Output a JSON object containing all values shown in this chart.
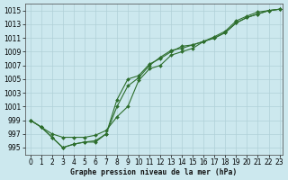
{
  "title": "Graphe pression niveau de la mer (hPa)",
  "background_color": "#cce8ee",
  "grid_color": "#b0d0d8",
  "line_color": "#2d6e2d",
  "xlim": [
    -0.5,
    23.3
  ],
  "ylim": [
    994.0,
    1016.0
  ],
  "yticks": [
    995,
    997,
    999,
    1001,
    1003,
    1005,
    1007,
    1009,
    1011,
    1013,
    1015
  ],
  "xticks": [
    0,
    1,
    2,
    3,
    4,
    5,
    6,
    7,
    8,
    9,
    10,
    11,
    12,
    13,
    14,
    15,
    16,
    17,
    18,
    19,
    20,
    21,
    22,
    23
  ],
  "series1_x": [
    0,
    1,
    2,
    3,
    4,
    5,
    6,
    7,
    8,
    9,
    10,
    11,
    12,
    13,
    14,
    15,
    16,
    17,
    18,
    19,
    20,
    21,
    22,
    23
  ],
  "series1_y": [
    999.0,
    998.0,
    997.0,
    996.5,
    996.5,
    996.5,
    996.8,
    997.5,
    999.5,
    1001.0,
    1004.8,
    1006.5,
    1007.0,
    1008.5,
    1009.0,
    1009.5,
    1010.5,
    1011.0,
    1011.8,
    1013.2,
    1014.0,
    1014.5,
    1015.0,
    1015.2
  ],
  "series2_x": [
    0,
    1,
    2,
    3,
    4,
    5,
    6,
    7,
    8,
    9,
    10,
    11,
    12,
    13,
    14,
    15,
    16,
    17,
    18,
    19,
    20,
    21,
    22,
    23
  ],
  "series2_y": [
    999.0,
    998.0,
    996.5,
    995.0,
    995.5,
    995.8,
    995.8,
    997.0,
    1002.0,
    1005.0,
    1005.5,
    1007.2,
    1008.0,
    1009.0,
    1009.8,
    1010.0,
    1010.5,
    1011.2,
    1012.0,
    1013.5,
    1014.2,
    1014.8,
    1015.0,
    1015.2
  ],
  "series3_x": [
    0,
    1,
    2,
    3,
    4,
    5,
    6,
    7,
    8,
    9,
    10,
    11,
    12,
    13,
    14,
    15,
    16,
    17,
    18,
    19,
    20,
    21,
    22,
    23
  ],
  "series3_y": [
    999.0,
    998.0,
    996.5,
    995.0,
    995.5,
    995.8,
    996.0,
    997.0,
    1001.0,
    1004.0,
    1005.2,
    1007.0,
    1008.2,
    1009.2,
    1009.5,
    1010.0,
    1010.5,
    1011.0,
    1011.8,
    1013.2,
    1014.0,
    1014.5,
    1015.0,
    1015.2
  ]
}
